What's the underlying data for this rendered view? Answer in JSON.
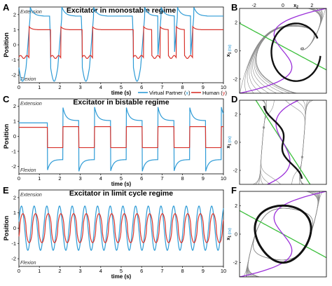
{
  "panels": {
    "A": {
      "letter": "A",
      "title": "Excitator in monostable regime",
      "top_label": "Extension",
      "bottom_label": "Flexion"
    },
    "B": {
      "letter": "B"
    },
    "C": {
      "letter": "C",
      "title": "Excitator in bistable regime",
      "top_label": "Extension",
      "bottom_label": "Flexion"
    },
    "D": {
      "letter": "D"
    },
    "E": {
      "letter": "E",
      "title": "Excitator in limit cycle regime",
      "top_label": "Extension",
      "bottom_label": "Flexion"
    },
    "F": {
      "letter": "F"
    }
  },
  "axes": {
    "ylabel": "Position",
    "xlabel": "time (s)",
    "yticks": [
      "2",
      "1",
      "0",
      "-1",
      "-2"
    ],
    "xticks": [
      "0",
      "1",
      "2",
      "3",
      "4",
      "5",
      "6",
      "7",
      "8",
      "9",
      "10"
    ]
  },
  "legend": {
    "vp_label": "Virtual Partner (",
    "vp_var": "x",
    "human_label": "Human (",
    "human_var": "y",
    "close": ")"
  },
  "phase_axes": {
    "x_label": "x",
    "x_sub": "2",
    "y_label": "x",
    "y_sub": "1",
    "y_sub2": "(=x)",
    "top_ticks": [
      "-2",
      "0",
      "2"
    ],
    "side_ticks_B": [
      "2",
      "0",
      "-2"
    ],
    "side_ticks_D": [
      "2",
      "0",
      "-2"
    ],
    "side_ticks_F": [
      "2",
      "0",
      "-2"
    ]
  },
  "colors": {
    "vp": "#2e9bd6",
    "human": "#d8332c",
    "nullcline_green": "#3cbf3c",
    "nullcline_purple": "#9b30d9",
    "stream": "#8a8a8a",
    "orbit": "#111111"
  },
  "chart_data": [
    {
      "type": "line",
      "title": "Excitator in monostable regime",
      "xlabel": "time (s)",
      "ylabel": "Position",
      "xlim": [
        0,
        10
      ],
      "ylim": [
        -2.5,
        2.5
      ],
      "series": [
        {
          "name": "Virtual Partner (x)",
          "regime": "monostable"
        },
        {
          "name": "Human (y)",
          "regime": "monostable"
        }
      ]
    },
    {
      "type": "line",
      "title": "Excitator in bistable regime",
      "xlabel": "time (s)",
      "ylabel": "Position",
      "xlim": [
        0,
        10
      ],
      "ylim": [
        -2.5,
        2.5
      ],
      "series": [
        {
          "name": "Virtual Partner (x)",
          "regime": "bistable"
        },
        {
          "name": "Human (y)",
          "regime": "bistable"
        }
      ]
    },
    {
      "type": "line",
      "title": "Excitator in limit cycle regime",
      "xlabel": "time (s)",
      "ylabel": "Position",
      "xlim": [
        0,
        10
      ],
      "ylim": [
        -2.5,
        2.5
      ],
      "series": [
        {
          "name": "Virtual Partner (x)",
          "regime": "limit cycle"
        },
        {
          "name": "Human (y)",
          "regime": "limit cycle"
        }
      ]
    }
  ]
}
